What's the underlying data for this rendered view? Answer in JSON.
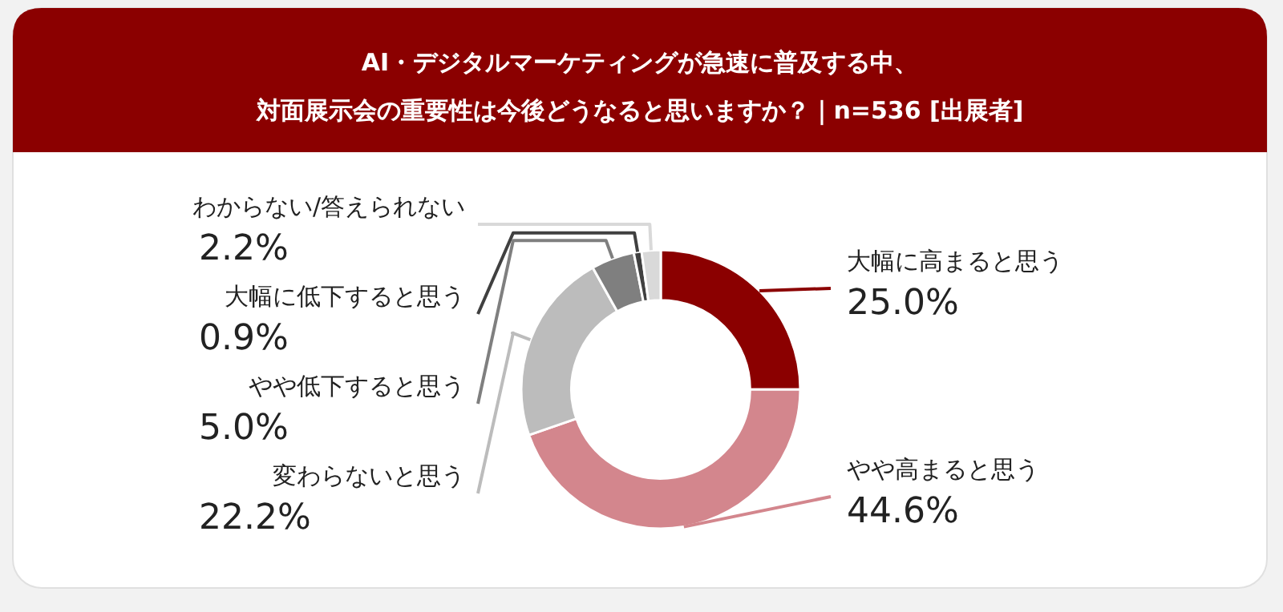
{
  "chart_data": {
    "type": "donut",
    "title": "AI・デジタルマーケティングが急速に普及する中、",
    "subtitle": "対面展示会の重要性は今後どうなると思いますか？｜n=536 [出展者]",
    "categories": [
      "大幅に高まると思う",
      "やや高まると思う",
      "変わらないと思う",
      "やや低下すると思う",
      "大幅に低下すると思う",
      "わからない/答えられない"
    ],
    "values": [
      25.0,
      44.6,
      22.2,
      5.0,
      0.9,
      2.2
    ],
    "value_labels": [
      "25.0%",
      "44.6%",
      "22.2%",
      "5.0%",
      "0.9%",
      "2.2%"
    ],
    "colors": [
      "#8b0000",
      "#d3868d",
      "#bcbcbc",
      "#7f7f7f",
      "#404040",
      "#d9d9d9"
    ]
  }
}
